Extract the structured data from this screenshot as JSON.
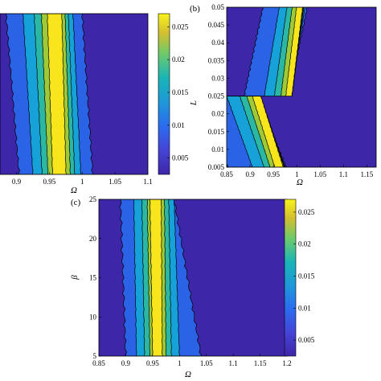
{
  "chart_data": [
    {
      "panel_label": "",
      "type": "heatmap",
      "x_ticks": [
        "0.9",
        "0.95",
        "1",
        "1.05",
        "1.1"
      ],
      "x_tick_values": [
        0.9,
        0.95,
        1.0,
        1.05,
        1.1
      ],
      "xlabel": "Ω",
      "ylabel": "",
      "xlim": [
        0.875,
        1.1
      ],
      "ylim": [
        0,
        1
      ],
      "colorbar": {
        "ticks": [
          "0.025",
          "0.02",
          "0.015",
          "0.01",
          "0.005"
        ],
        "tick_values": [
          0.025,
          0.02,
          0.015,
          0.01,
          0.005
        ],
        "range": [
          0.0025,
          0.027
        ]
      },
      "bands": [
        {
          "level": 0.005,
          "x_center": 0.942,
          "half_width": 0.058,
          "skew": 0.02
        },
        {
          "level": 0.01,
          "x_center": 0.948,
          "half_width": 0.038,
          "skew": 0.015
        },
        {
          "level": 0.015,
          "x_center": 0.953,
          "half_width": 0.026,
          "skew": 0.012
        },
        {
          "level": 0.02,
          "x_center": 0.956,
          "half_width": 0.018,
          "skew": 0.01
        },
        {
          "level": 0.025,
          "x_center": 0.958,
          "half_width": 0.011,
          "skew": 0.008
        }
      ]
    },
    {
      "panel_label": "(b)",
      "type": "heatmap",
      "x_ticks": [
        "0.85",
        "0.9",
        "0.95",
        "1",
        "1.05",
        "1.1",
        "1.15"
      ],
      "x_tick_values": [
        0.85,
        0.9,
        0.95,
        1.0,
        1.05,
        1.1,
        1.15
      ],
      "y_ticks": [
        "0.05",
        "0.045",
        "0.04",
        "0.035",
        "0.03",
        "0.025",
        "0.02",
        "0.015",
        "0.01",
        "0.005"
      ],
      "y_tick_values": [
        0.05,
        0.045,
        0.04,
        0.035,
        0.03,
        0.025,
        0.02,
        0.015,
        0.01,
        0.005
      ],
      "xlabel": "Ω",
      "ylabel": "L",
      "xlim": [
        0.85,
        1.17
      ],
      "ylim": [
        0.005,
        0.05
      ],
      "regions": [
        {
          "y_range": [
            0.025,
            0.05
          ],
          "level": 0.005,
          "x_at_ymin": 0.935,
          "x_at_ymax": 0.975,
          "width": 0.095
        },
        {
          "y_range": [
            0.025,
            0.05
          ],
          "level": 0.01,
          "x_at_ymin": 0.958,
          "x_at_ymax": 0.99,
          "width": 0.055
        },
        {
          "y_range": [
            0.025,
            0.05
          ],
          "level": 0.015,
          "x_at_ymin": 0.97,
          "x_at_ymax": 0.997,
          "width": 0.036
        },
        {
          "y_range": [
            0.025,
            0.05
          ],
          "level": 0.02,
          "x_at_ymin": 0.978,
          "x_at_ymax": 1.002,
          "width": 0.024
        },
        {
          "y_range": [
            0.025,
            0.05
          ],
          "level": 0.025,
          "x_at_ymin": 0.983,
          "x_at_ymax": 1.006,
          "width": 0.013
        },
        {
          "y_range": [
            0.005,
            0.025
          ],
          "level": 0.005,
          "x_at_ymin": 0.915,
          "x_at_ymax": 0.852,
          "width": 0.125
        },
        {
          "y_range": [
            0.005,
            0.025
          ],
          "level": 0.01,
          "x_at_ymin": 0.94,
          "x_at_ymax": 0.885,
          "width": 0.07
        },
        {
          "y_range": [
            0.005,
            0.025
          ],
          "level": 0.015,
          "x_at_ymin": 0.952,
          "x_at_ymax": 0.9,
          "width": 0.044
        },
        {
          "y_range": [
            0.005,
            0.025
          ],
          "level": 0.02,
          "x_at_ymin": 0.958,
          "x_at_ymax": 0.908,
          "width": 0.03
        },
        {
          "y_range": [
            0.005,
            0.025
          ],
          "level": 0.025,
          "x_at_ymin": 0.962,
          "x_at_ymax": 0.914,
          "width": 0.018
        }
      ]
    },
    {
      "panel_label": "(c)",
      "type": "heatmap",
      "x_ticks": [
        "0.85",
        "0.9",
        "0.95",
        "1",
        "1.05",
        "1.1",
        "1.15",
        "1.2"
      ],
      "x_tick_values": [
        0.85,
        0.9,
        0.95,
        1.0,
        1.05,
        1.1,
        1.15,
        1.2
      ],
      "y_ticks": [
        "25",
        "20",
        "15",
        "10",
        "5"
      ],
      "y_tick_values": [
        25,
        20,
        15,
        10,
        5
      ],
      "xlabel": "Ω",
      "ylabel": "β",
      "xlim": [
        0.85,
        1.2
      ],
      "ylim": [
        5,
        25
      ],
      "colorbar": {
        "ticks": [
          "0.025",
          "0.02",
          "0.015",
          "0.01",
          "0.005"
        ],
        "tick_values": [
          0.025,
          0.02,
          0.015,
          0.01,
          0.005
        ],
        "range": [
          0.0025,
          0.027
        ]
      },
      "bands": [
        {
          "level": 0.005,
          "x_at_top": 0.89,
          "x_at_bottom": 0.9,
          "right_at_top": 0.99,
          "right_at_bottom": 1.04
        },
        {
          "level": 0.01,
          "x_at_top": 0.915,
          "x_at_bottom": 0.92,
          "right_at_top": 0.99,
          "right_at_bottom": 1.0
        },
        {
          "level": 0.015,
          "x_at_top": 0.93,
          "x_at_bottom": 0.935,
          "right_at_top": 0.98,
          "right_at_bottom": 0.985
        },
        {
          "level": 0.02,
          "x_at_top": 0.94,
          "x_at_bottom": 0.945,
          "right_at_top": 0.972,
          "right_at_bottom": 0.975
        },
        {
          "level": 0.025,
          "x_at_top": 0.945,
          "x_at_bottom": 0.95,
          "right_at_top": 0.966,
          "right_at_bottom": 0.968
        }
      ]
    }
  ],
  "colors": {
    "background": "#3d26a8",
    "level_0005": "#2b63e6",
    "level_001": "#16a2d9",
    "level_0015": "#2ab8a4",
    "level_002": "#9fc937",
    "level_0025": "#f9e51c",
    "contour_line": "#000000"
  }
}
